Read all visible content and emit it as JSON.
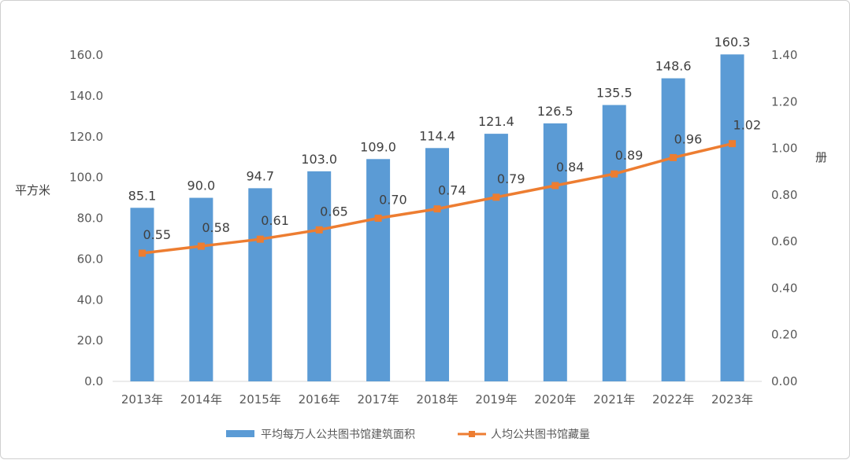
{
  "chart_data": {
    "type": "bar",
    "categories": [
      "2013年",
      "2014年",
      "2015年",
      "2016年",
      "2017年",
      "2018年",
      "2019年",
      "2020年",
      "2021年",
      "2022年",
      "2023年"
    ],
    "series": [
      {
        "name": "平均每万人公共图书馆建筑面积",
        "type": "bar",
        "axis": "left",
        "color": "#5B9BD5",
        "values": [
          85.1,
          90.0,
          94.7,
          103.0,
          109.0,
          114.4,
          121.4,
          126.5,
          135.5,
          148.6,
          160.3
        ],
        "labels": [
          "85.1",
          "90.0",
          "94.7",
          "103.0",
          "109.0",
          "114.4",
          "121.4",
          "126.5",
          "135.5",
          "148.6",
          "160.3"
        ]
      },
      {
        "name": "人均公共图书馆藏量",
        "type": "line",
        "axis": "right",
        "color": "#ED7D31",
        "values": [
          0.55,
          0.58,
          0.61,
          0.65,
          0.7,
          0.74,
          0.79,
          0.84,
          0.89,
          0.96,
          1.02
        ],
        "labels": [
          "0.55",
          "0.58",
          "0.61",
          "0.65",
          "0.70",
          "0.74",
          "0.79",
          "0.84",
          "0.89",
          "0.96",
          "1.02"
        ]
      }
    ],
    "ylabel_left": "平方米",
    "ylabel_right": "册",
    "ylim_left": [
      0,
      160
    ],
    "ylim_right": [
      0,
      1.4
    ],
    "yticks_left": [
      "0.0",
      "20.0",
      "40.0",
      "60.0",
      "80.0",
      "100.0",
      "120.0",
      "140.0",
      "160.0"
    ],
    "yticks_right": [
      "0.00",
      "0.20",
      "0.40",
      "0.60",
      "0.80",
      "1.00",
      "1.20",
      "1.40"
    ],
    "grid": false,
    "legend_position": "bottom"
  }
}
